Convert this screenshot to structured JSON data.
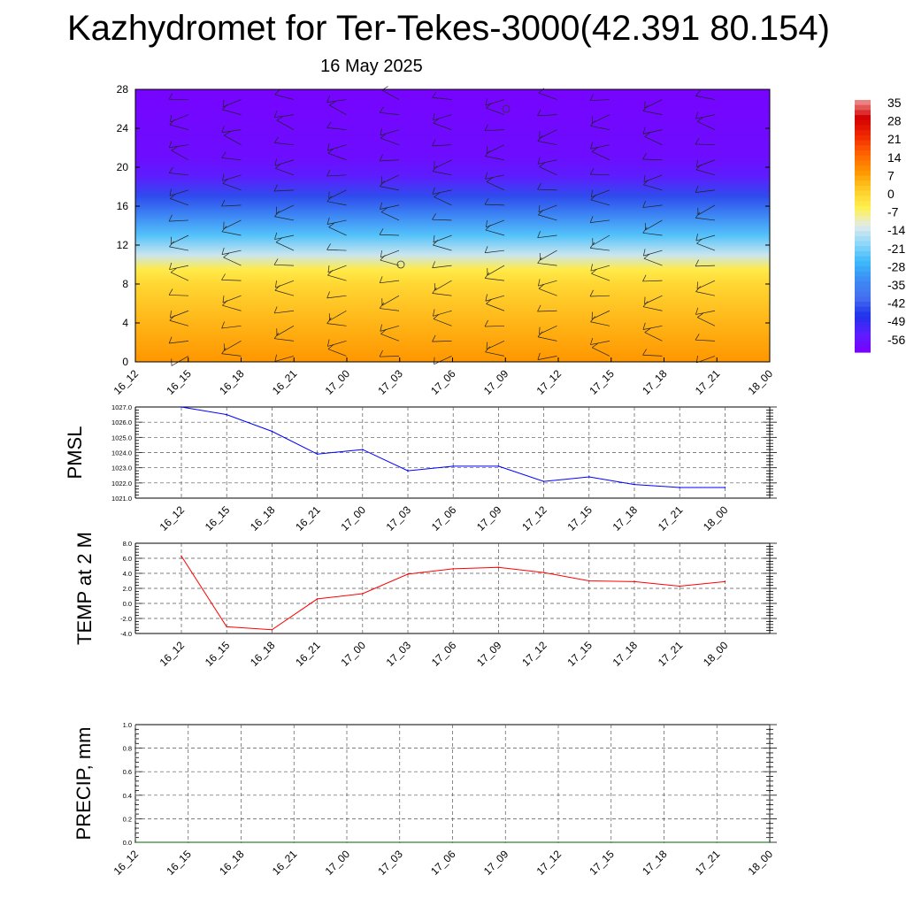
{
  "title": "Kazhydromet for Ter-Tekes-3000(42.391 80.154)",
  "subtitle": "16 May 2025",
  "time_labels": [
    "16_12",
    "16_15",
    "16_18",
    "16_21",
    "17_00",
    "17_03",
    "17_06",
    "17_09",
    "17_12",
    "17_15",
    "17_18",
    "17_21",
    "18_00"
  ],
  "colors": {
    "pmsl": "#0000ff",
    "temp": "#ff0000",
    "precip": "#006400"
  },
  "chart_data": [
    {
      "type": "heatmap",
      "name": "cross-section",
      "x": [
        "16_12",
        "16_15",
        "16_18",
        "16_21",
        "17_00",
        "17_03",
        "17_06",
        "17_09",
        "17_12",
        "17_15",
        "17_18",
        "17_21",
        "18_00"
      ],
      "y_ticks": [
        0,
        4,
        8,
        12,
        16,
        20,
        24,
        28
      ],
      "ylim": [
        0,
        28
      ],
      "colorbar_labels": [
        "35",
        "28",
        "21",
        "14",
        "7",
        "0",
        "-7",
        "-14",
        "-21",
        "-28",
        "-35",
        "-42",
        "-49",
        "-56"
      ],
      "temperature_profile": [
        {
          "y": 0,
          "t": 7
        },
        {
          "y": 4,
          "t": 3
        },
        {
          "y": 8,
          "t": -2
        },
        {
          "y": 9.5,
          "t": -6
        },
        {
          "y": 11,
          "t": -16
        },
        {
          "y": 13,
          "t": -26
        },
        {
          "y": 15,
          "t": -36
        },
        {
          "y": 17,
          "t": -46
        },
        {
          "y": 19,
          "t": -56
        },
        {
          "y": 21,
          "t": -60
        },
        {
          "y": 28,
          "t": -62
        }
      ]
    },
    {
      "type": "line",
      "ylabel": "PMSL",
      "categories": [
        "16_12",
        "16_15",
        "16_18",
        "16_21",
        "17_00",
        "17_03",
        "17_06",
        "17_09",
        "17_12",
        "17_15",
        "17_18",
        "17_21",
        "18_00"
      ],
      "values": [
        1027.0,
        1026.5,
        1025.4,
        1023.9,
        1024.2,
        1022.8,
        1023.1,
        1023.1,
        1022.1,
        1022.4,
        1021.9,
        1021.7,
        1021.7
      ],
      "ylim": [
        1021.0,
        1027.0
      ],
      "y_ticks": [
        "1021.0",
        "1022.0",
        "1023.0",
        "1024.0",
        "1025.0",
        "1026.0",
        "1027.0"
      ]
    },
    {
      "type": "line",
      "ylabel": "TEMP at 2 M",
      "categories": [
        "16_12",
        "16_15",
        "16_18",
        "16_21",
        "17_00",
        "17_03",
        "17_06",
        "17_09",
        "17_12",
        "17_15",
        "17_18",
        "17_21",
        "18_00"
      ],
      "values": [
        6.3,
        -3.1,
        -3.5,
        0.6,
        1.3,
        3.9,
        4.6,
        4.8,
        4.1,
        3.0,
        2.9,
        2.3,
        2.9
      ],
      "ylim": [
        -4.0,
        8.0
      ],
      "y_ticks": [
        "-4.0",
        "-2.0",
        "0.0",
        "2.0",
        "4.0",
        "6.0",
        "8.0"
      ]
    },
    {
      "type": "line",
      "ylabel": "PRECIP, mm",
      "categories": [
        "16_12",
        "16_15",
        "16_18",
        "16_21",
        "17_00",
        "17_03",
        "17_06",
        "17_09",
        "17_12",
        "17_15",
        "17_18",
        "17_21",
        "18_00"
      ],
      "values": [
        0,
        0,
        0,
        0,
        0,
        0,
        0,
        0,
        0,
        0,
        0,
        0,
        0
      ],
      "ylim": [
        0.0,
        1.0
      ],
      "y_ticks": [
        "0.0",
        "0.2",
        "0.4",
        "0.6",
        "0.8",
        "1.0"
      ]
    }
  ]
}
